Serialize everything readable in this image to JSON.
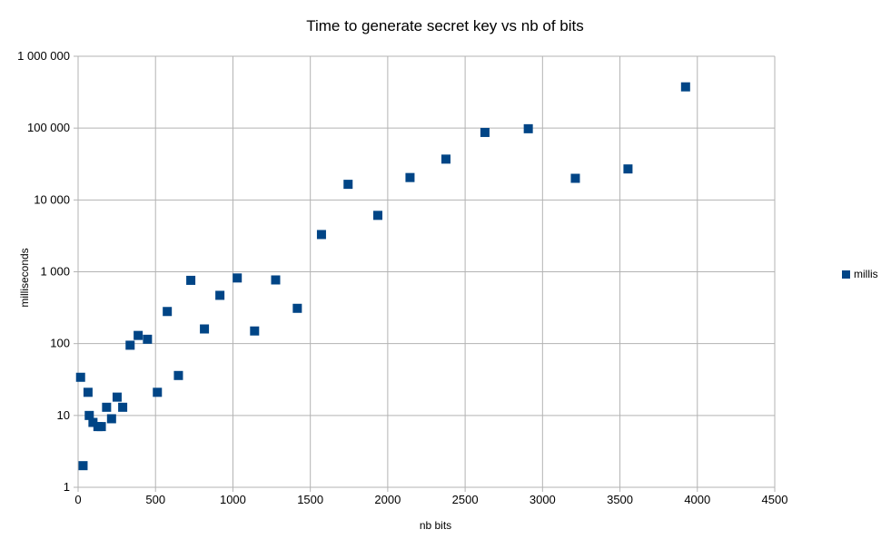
{
  "chart_data": {
    "type": "scatter",
    "title": "Time to generate secret key vs nb of bits",
    "xlabel": "nb bits",
    "ylabel": "milliseconds",
    "xlim": [
      0,
      4500
    ],
    "ylim": [
      1,
      1000000
    ],
    "y_scale": "log",
    "x_ticks": [
      0,
      500,
      1000,
      1500,
      2000,
      2500,
      3000,
      3500,
      4000,
      4500
    ],
    "x_tick_labels": [
      "0",
      "500",
      "1000",
      "1500",
      "2000",
      "2500",
      "3000",
      "3500",
      "4000",
      "4500"
    ],
    "y_ticks": [
      1,
      10,
      100,
      1000,
      10000,
      100000,
      1000000
    ],
    "y_tick_labels": [
      "1",
      "10",
      "100",
      "1 000",
      "10 000",
      "100 000",
      "1 000 000"
    ],
    "grid": true,
    "legend_position": "right",
    "series": [
      {
        "name": "millis",
        "color": "#004586",
        "marker": "square",
        "x": [
          16,
          32,
          64,
          72,
          96,
          128,
          150,
          184,
          216,
          252,
          288,
          336,
          388,
          448,
          512,
          576,
          648,
          728,
          816,
          916,
          1028,
          1140,
          1276,
          1416,
          1572,
          1744,
          1936,
          2144,
          2376,
          2628,
          2908,
          3212,
          3552,
          3924
        ],
        "y": [
          34,
          2,
          21,
          10,
          8,
          7,
          7,
          13,
          9,
          18,
          13,
          95,
          130,
          115,
          21,
          280,
          36,
          760,
          160,
          470,
          820,
          150,
          770,
          310,
          3300,
          16500,
          6100,
          20500,
          37000,
          87000,
          98000,
          20000,
          27000,
          375000
        ]
      }
    ]
  }
}
